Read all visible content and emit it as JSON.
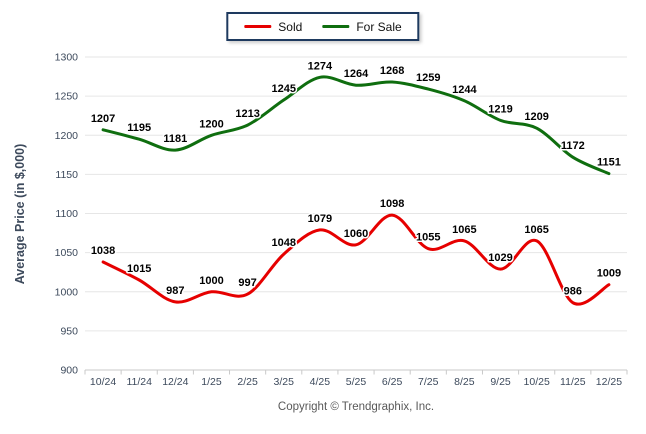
{
  "chart_data": {
    "type": "line",
    "title": "",
    "categories": [
      "10/24",
      "11/24",
      "12/24",
      "1/25",
      "2/25",
      "3/25",
      "4/25",
      "5/25",
      "6/25",
      "7/25",
      "8/25",
      "9/25",
      "10/25",
      "11/25",
      "12/25"
    ],
    "series": [
      {
        "name": "Sold",
        "color": "#e60000",
        "values": [
          1038,
          1015,
          987,
          1000,
          997,
          1048,
          1079,
          1060,
          1098,
          1055,
          1065,
          1029,
          1065,
          986,
          1009
        ]
      },
      {
        "name": "For Sale",
        "color": "#0f6e0f",
        "values": [
          1207,
          1195,
          1181,
          1200,
          1213,
          1245,
          1274,
          1264,
          1268,
          1259,
          1244,
          1219,
          1209,
          1172,
          1151
        ]
      }
    ],
    "xlabel": "",
    "ylabel": "Average Price (in $,000)",
    "ylim": [
      900,
      1300
    ],
    "ytick_step": 50,
    "grid": true,
    "legend_position": "top-center"
  },
  "legend": {
    "items": [
      {
        "label": "Sold",
        "color": "#e60000"
      },
      {
        "label": "For Sale",
        "color": "#0f6e0f"
      }
    ],
    "border_color": "#1e3a5f"
  },
  "footer": {
    "copyright": "Copyright © Trendgraphix, Inc."
  },
  "colors": {
    "background": "#ffffff",
    "gridline": "#e6e6e6",
    "axis_line": "#c9c9c9",
    "tick_label": "#3d4a5c",
    "axis_title": "#3d4a5c",
    "data_label": "#000000",
    "data_label_halo": "#ffffff"
  }
}
